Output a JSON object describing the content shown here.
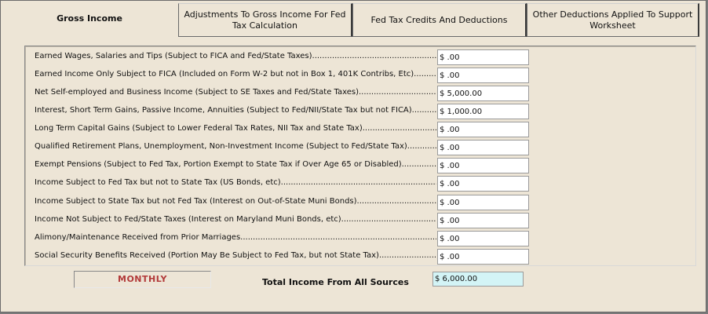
{
  "tabs": [
    {
      "label": "Gross Income"
    },
    {
      "label": "Adjustments To Gross Income For Fed Tax Calculation"
    },
    {
      "label": "Fed Tax Credits And Deductions"
    },
    {
      "label": "Other Deductions Applied To Support Worksheet"
    }
  ],
  "rows": [
    {
      "label": "Earned Wages, Salaries and Tips (Subject to FICA and Fed/State Taxes)",
      "value": "$ .00"
    },
    {
      "label": "Earned Income Only Subject to FICA (Included on Form W-2 but not in Box 1, 401K Contribs, Etc)",
      "value": "$ .00"
    },
    {
      "label": "Net Self-employed and Business Income (Subject to SE Taxes and Fed/State Taxes)",
      "value": "$ 5,000.00"
    },
    {
      "label": "Interest, Short Term Gains, Passive Income, Annuities (Subject to Fed/NII/State Tax but not FICA)",
      "value": "$ 1,000.00"
    },
    {
      "label": "Long Term Capital Gains (Subject to Lower Federal Tax Rates, NII Tax and State Tax)",
      "value": "$ .00"
    },
    {
      "label": "Qualified Retirement Plans, Unemployment, Non-Investment Income (Subject to Fed/State Tax)",
      "value": "$ .00"
    },
    {
      "label": "Exempt Pensions (Subject to Fed Tax, Portion Exempt to State Tax if Over Age 65 or Disabled)",
      "value": "$ .00"
    },
    {
      "label": "Income Subject to Fed Tax but not to State Tax (US Bonds, etc)",
      "value": "$ .00"
    },
    {
      "label": "Income Subject to State Tax but not Fed Tax (Interest on Out-of-State Muni Bonds)",
      "value": "$ .00"
    },
    {
      "label": "Income Not Subject to Fed/State Taxes (Interest on Maryland Muni Bonds, etc)",
      "value": "$ .00"
    },
    {
      "label": "Alimony/Maintenance Received from Prior Marriages",
      "value": "$ .00"
    },
    {
      "label": "Social Security Benefits Received (Portion May Be Subject to Fed Tax, but not State Tax)",
      "value": "$ .00"
    }
  ],
  "monthly_label": "MONTHLY",
  "total": {
    "label": "Total Income From All Sources",
    "value": "$ 6,000.00"
  }
}
